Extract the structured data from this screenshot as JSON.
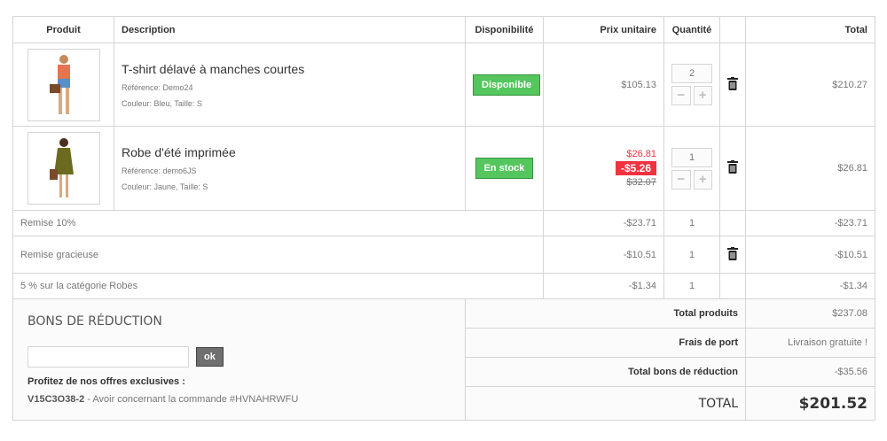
{
  "headers": {
    "product": "Produit",
    "description": "Description",
    "availability": "Disponibilité",
    "unit_price": "Prix unitaire",
    "quantity": "Quantité",
    "total": "Total"
  },
  "products": [
    {
      "name": "T-shirt délavé à manches courtes",
      "reference": "Référence: Demo24",
      "attributes": "Couleur: Bleu, Taille: S",
      "availability": "Disponible",
      "price": "$105.13",
      "quantity": "2",
      "total": "$210.27",
      "image_color": "#e8734f"
    },
    {
      "name": "Robe d'été imprimée",
      "reference": "Référence: demo6JS",
      "attributes": "Couleur: Jaune, Taille: S",
      "availability": "En stock",
      "price": "$26.81",
      "reduction": "-$5.26",
      "old_price": "$32.07",
      "quantity": "1",
      "total": "$26.81",
      "image_color": "#6b6b1f"
    }
  ],
  "discounts": [
    {
      "label": "Remise 10%",
      "price": "-$23.71",
      "quantity": "1",
      "total": "-$23.71",
      "deletable": false
    },
    {
      "label": "Remise gracieuse",
      "price": "-$10.51",
      "quantity": "1",
      "total": "-$10.51",
      "deletable": true
    },
    {
      "label": "5 % sur la catégorie Robes",
      "price": "-$1.34",
      "quantity": "1",
      "total": "-$1.34",
      "deletable": false
    }
  ],
  "vouchers": {
    "title": "BONS DE RÉDUCTION",
    "input_value": "",
    "ok_label": "ok",
    "offers_label": "Profitez de nos offres exclusives :",
    "code": "V15C3O38-2",
    "code_desc": " - Avoir concernant la commande #HVNAHRWFU"
  },
  "summary": [
    {
      "label": "Total produits",
      "value": "$237.08"
    },
    {
      "label": "Frais de port",
      "value": "Livraison gratuite !"
    },
    {
      "label": "Total bons de réduction",
      "value": "-$35.56"
    }
  ],
  "grand_total": {
    "label": "TOTAL",
    "value": "$201.52"
  },
  "colors": {
    "available": "#55c65e",
    "reduction": "#f13340"
  }
}
